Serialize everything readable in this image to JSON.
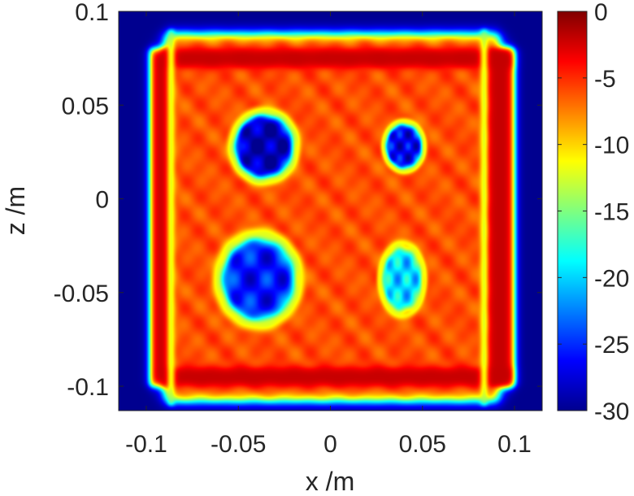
{
  "chart_data": {
    "type": "heatmap",
    "title": "",
    "xlabel": "x /m",
    "ylabel": "z /m",
    "xlim": [
      -0.115,
      0.115
    ],
    "ylim": [
      -0.113,
      0.1
    ],
    "x_ticks": [
      {
        "value": -0.1,
        "label": "-0.1"
      },
      {
        "value": -0.05,
        "label": "-0.05"
      },
      {
        "value": 0,
        "label": "0"
      },
      {
        "value": 0.05,
        "label": "0.05"
      },
      {
        "value": 0.1,
        "label": "0.1"
      }
    ],
    "y_ticks": [
      {
        "value": 0.1,
        "label": "0.1"
      },
      {
        "value": 0.05,
        "label": "0.05"
      },
      {
        "value": 0,
        "label": "0"
      },
      {
        "value": -0.05,
        "label": "-0.05"
      },
      {
        "value": -0.1,
        "label": "-0.1"
      }
    ],
    "colormap": "jet",
    "clim": [
      -30,
      0
    ],
    "colorbar_ticks": [
      {
        "value": 0,
        "label": "0"
      },
      {
        "value": -5,
        "label": "-5"
      },
      {
        "value": -10,
        "label": "-10"
      },
      {
        "value": -15,
        "label": "-15"
      },
      {
        "value": -20,
        "label": "-20"
      },
      {
        "value": -25,
        "label": "-25"
      },
      {
        "value": -30,
        "label": "-30"
      }
    ],
    "background_level": -30,
    "plate": {
      "x": [
        -0.09,
        0.092
      ],
      "z": [
        -0.108,
        0.088
      ],
      "level": -6
    },
    "strips": [
      {
        "x": [
          -0.098,
          -0.086
        ],
        "z": [
          -0.1,
          0.08
        ],
        "level": -2
      },
      {
        "x": [
          0.085,
          0.1
        ],
        "z": [
          -0.1,
          0.08
        ],
        "level": -2
      },
      {
        "x": [
          -0.092,
          0.098
        ],
        "z": [
          0.07,
          0.08
        ],
        "level": -2
      },
      {
        "x": [
          -0.092,
          0.098
        ],
        "z": [
          -0.1,
          -0.09
        ],
        "level": -2
      }
    ],
    "gaps": [
      {
        "x": [
          -0.088,
          -0.085
        ],
        "z": [
          -0.11,
          0.09
        ],
        "level": -14
      },
      {
        "x": [
          0.082,
          0.085
        ],
        "z": [
          -0.11,
          0.09
        ],
        "level": -14
      }
    ],
    "defects": [
      {
        "center": [
          -0.036,
          0.028
        ],
        "radius": [
          0.016,
          0.017
        ],
        "level": -29
      },
      {
        "center": [
          0.04,
          0.028
        ],
        "radius": [
          0.01,
          0.012
        ],
        "level": -27
      },
      {
        "center": [
          -0.039,
          -0.043
        ],
        "radius": [
          0.02,
          0.022
        ],
        "level": -26
      },
      {
        "center": [
          0.039,
          -0.043
        ],
        "radius": [
          0.011,
          0.017
        ],
        "level": -20
      }
    ]
  }
}
